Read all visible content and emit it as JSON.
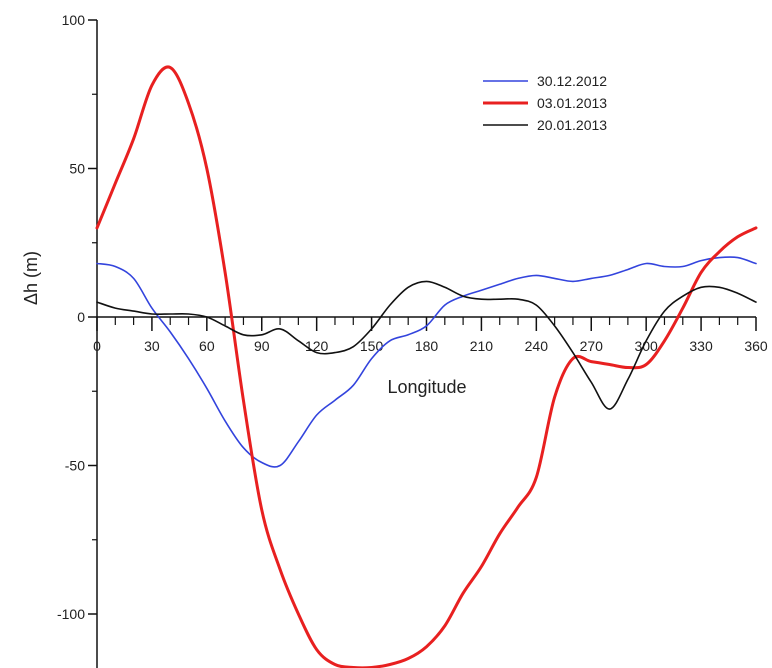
{
  "chart_data": {
    "type": "line",
    "xlabel": "Longitude",
    "ylabel": "Δh (m)",
    "xlim": [
      0,
      360
    ],
    "ylim": [
      -120,
      100
    ],
    "x_ticks": [
      0,
      30,
      60,
      90,
      120,
      150,
      180,
      210,
      240,
      270,
      300,
      330,
      360
    ],
    "x_tick_labels": [
      "0",
      "30",
      "60",
      "90",
      "120",
      "150",
      "180",
      "210",
      "240",
      "270",
      "300",
      "330",
      "360"
    ],
    "y_ticks": [
      100,
      50,
      0,
      -50,
      -100
    ],
    "y_tick_labels": [
      "100",
      "50",
      "0",
      "-50",
      "-100"
    ],
    "grid": false,
    "legend_position": "top-right",
    "series": [
      {
        "name": "30.12.2012",
        "color": "#3344dd",
        "x": [
          0,
          10,
          20,
          30,
          40,
          50,
          60,
          70,
          80,
          90,
          100,
          110,
          120,
          130,
          140,
          150,
          160,
          170,
          180,
          190,
          200,
          210,
          220,
          230,
          240,
          250,
          260,
          270,
          280,
          290,
          300,
          310,
          320,
          330,
          340,
          350,
          360
        ],
        "y": [
          18,
          17,
          13,
          3,
          -5,
          -14,
          -24,
          -35,
          -44,
          -49,
          -50,
          -42,
          -33,
          -28,
          -23,
          -14,
          -8,
          -6,
          -3,
          4,
          7,
          9,
          11,
          13,
          14,
          13,
          12,
          13,
          14,
          16,
          18,
          17,
          17,
          19,
          20,
          20,
          18
        ]
      },
      {
        "name": "03.01.2013",
        "color": "#e82020",
        "x": [
          0,
          10,
          20,
          30,
          40,
          50,
          60,
          70,
          80,
          90,
          100,
          110,
          120,
          130,
          140,
          150,
          160,
          170,
          180,
          190,
          200,
          210,
          220,
          230,
          240,
          250,
          260,
          270,
          280,
          290,
          300,
          310,
          320,
          330,
          340,
          350,
          360
        ],
        "y": [
          30,
          45,
          60,
          78,
          84,
          72,
          50,
          15,
          -28,
          -65,
          -85,
          -100,
          -112,
          -117,
          -118,
          -118,
          -117,
          -115,
          -111,
          -104,
          -93,
          -84,
          -73,
          -64,
          -54,
          -27,
          -14,
          -15,
          -16,
          -17,
          -16,
          -8,
          3,
          15,
          22,
          27,
          30
        ]
      },
      {
        "name": "20.01.2013",
        "color": "#111111",
        "x": [
          0,
          10,
          20,
          30,
          40,
          50,
          60,
          70,
          80,
          90,
          100,
          110,
          120,
          130,
          140,
          150,
          160,
          170,
          180,
          190,
          200,
          210,
          220,
          230,
          240,
          250,
          260,
          270,
          280,
          290,
          300,
          310,
          320,
          330,
          340,
          350,
          360
        ],
        "y": [
          5,
          3,
          2,
          1,
          1,
          1,
          0,
          -3,
          -6,
          -6,
          -4,
          -8,
          -12,
          -12,
          -10,
          -4,
          4,
          10,
          12,
          10,
          7,
          6,
          6,
          6,
          4,
          -3,
          -12,
          -22,
          -31,
          -21,
          -8,
          2,
          7,
          10,
          10,
          8,
          5
        ]
      }
    ]
  }
}
